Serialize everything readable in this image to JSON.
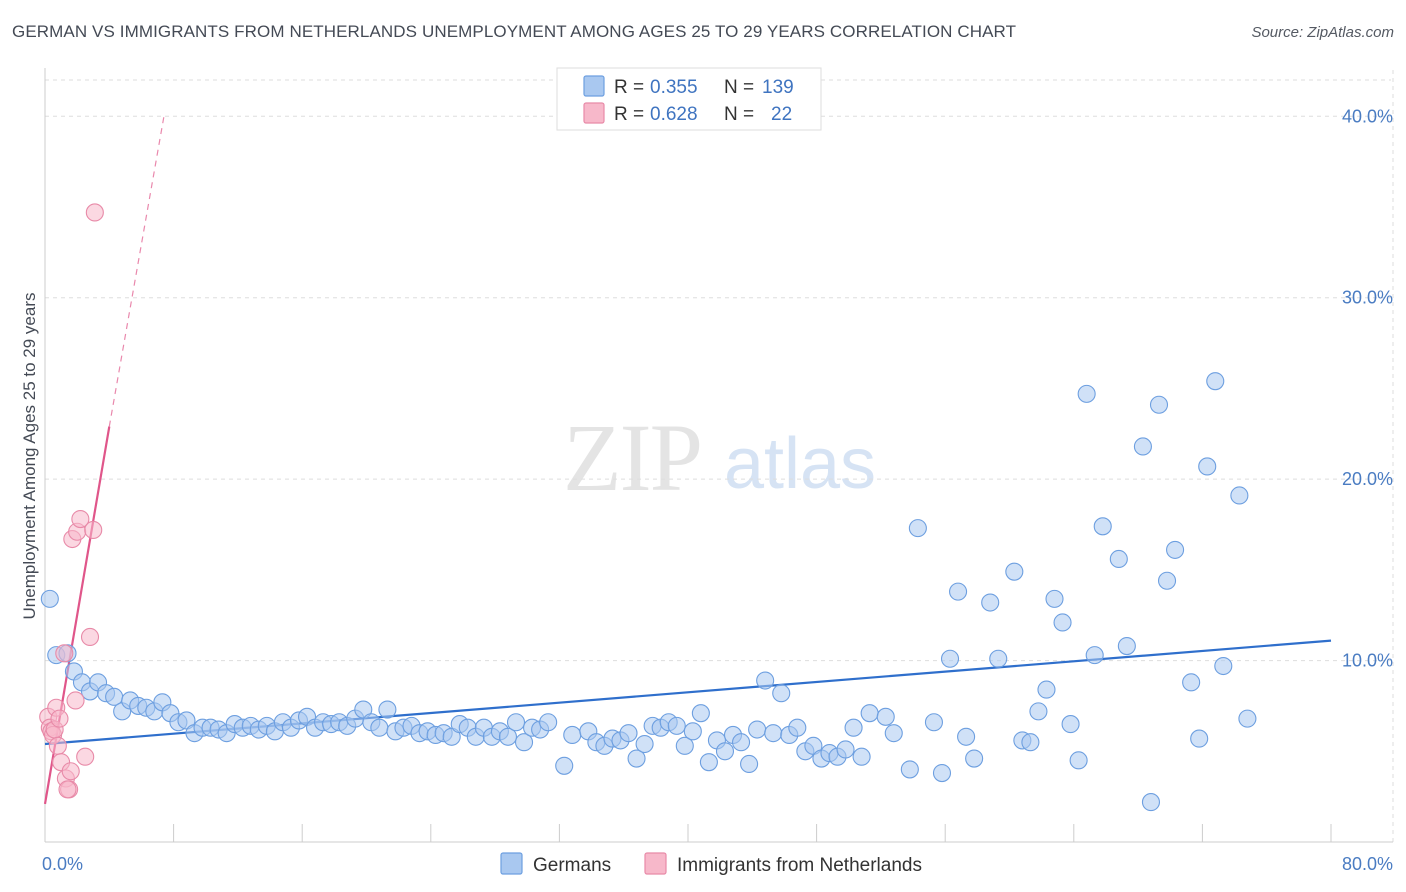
{
  "title": "GERMAN VS IMMIGRANTS FROM NETHERLANDS UNEMPLOYMENT AMONG AGES 25 TO 29 YEARS CORRELATION CHART",
  "source": "Source: ZipAtlas.com",
  "watermark": {
    "zip": "ZIP",
    "atlas": "atlas"
  },
  "legend_top": [
    {
      "r_label": "R = ",
      "r_value": "0.355",
      "n_label": "N = ",
      "n_value": "139"
    },
    {
      "r_label": "R = ",
      "r_value": "0.628",
      "n_label": "N = ",
      "n_value": "22"
    }
  ],
  "colors": {
    "germans_fill": "#a9c8f0",
    "germans_stroke": "#6d9fe0",
    "germans_line": "#2f6fcc",
    "neth_fill": "#f7b8ca",
    "neth_stroke": "#e88aa8",
    "neth_line": "#e0568a",
    "grid": "#dddddd",
    "axis": "#cccccc"
  },
  "chart_data": {
    "type": "scatter",
    "title": "GERMAN VS IMMIGRANTS FROM NETHERLANDS UNEMPLOYMENT AMONG AGES 25 TO 29 YEARS CORRELATION CHART",
    "xlabel": "",
    "ylabel": "Unemployment Among Ages 25 to 29 years",
    "xlim": [
      0,
      80
    ],
    "ylim": [
      0,
      42
    ],
    "x_tick_labels": [
      "0.0%",
      "80.0%"
    ],
    "y_ticks": [
      10,
      20,
      30,
      40
    ],
    "y_tick_labels": [
      "10.0%",
      "20.0%",
      "30.0%",
      "40.0%"
    ],
    "grid": true,
    "legend_position": "top-center",
    "series": [
      {
        "name": "Germans",
        "r": 0.355,
        "n": 139,
        "trend": {
          "x": [
            0,
            80
          ],
          "y": [
            5.4,
            11.1
          ],
          "style": "solid"
        },
        "points": [
          [
            0.3,
            13.4
          ],
          [
            0.7,
            10.3
          ],
          [
            1.4,
            10.4
          ],
          [
            1.8,
            9.4
          ],
          [
            2.3,
            8.8
          ],
          [
            2.8,
            8.3
          ],
          [
            3.3,
            8.8
          ],
          [
            3.8,
            8.2
          ],
          [
            4.3,
            8.0
          ],
          [
            4.8,
            7.2
          ],
          [
            5.3,
            7.8
          ],
          [
            5.8,
            7.5
          ],
          [
            6.3,
            7.4
          ],
          [
            6.8,
            7.2
          ],
          [
            7.3,
            7.7
          ],
          [
            7.8,
            7.1
          ],
          [
            8.3,
            6.6
          ],
          [
            8.8,
            6.7
          ],
          [
            9.3,
            6.0
          ],
          [
            9.8,
            6.3
          ],
          [
            10.3,
            6.3
          ],
          [
            10.8,
            6.2
          ],
          [
            11.3,
            6.0
          ],
          [
            11.8,
            6.5
          ],
          [
            12.3,
            6.3
          ],
          [
            12.8,
            6.4
          ],
          [
            13.3,
            6.2
          ],
          [
            13.8,
            6.4
          ],
          [
            14.3,
            6.1
          ],
          [
            14.8,
            6.6
          ],
          [
            15.3,
            6.3
          ],
          [
            15.8,
            6.7
          ],
          [
            16.3,
            6.9
          ],
          [
            16.8,
            6.3
          ],
          [
            17.3,
            6.6
          ],
          [
            17.8,
            6.5
          ],
          [
            18.3,
            6.6
          ],
          [
            18.8,
            6.4
          ],
          [
            19.3,
            6.8
          ],
          [
            19.8,
            7.3
          ],
          [
            20.3,
            6.6
          ],
          [
            20.8,
            6.3
          ],
          [
            21.3,
            7.3
          ],
          [
            21.8,
            6.1
          ],
          [
            22.3,
            6.3
          ],
          [
            22.8,
            6.4
          ],
          [
            23.3,
            6.0
          ],
          [
            23.8,
            6.1
          ],
          [
            24.3,
            5.9
          ],
          [
            24.8,
            6.0
          ],
          [
            25.3,
            5.8
          ],
          [
            25.8,
            6.5
          ],
          [
            26.3,
            6.3
          ],
          [
            26.8,
            5.8
          ],
          [
            27.3,
            6.3
          ],
          [
            27.8,
            5.8
          ],
          [
            28.3,
            6.1
          ],
          [
            28.8,
            5.8
          ],
          [
            29.3,
            6.6
          ],
          [
            29.8,
            5.5
          ],
          [
            30.3,
            6.3
          ],
          [
            30.8,
            6.2
          ],
          [
            31.3,
            6.6
          ],
          [
            32.3,
            4.2
          ],
          [
            32.8,
            5.9
          ],
          [
            33.8,
            6.1
          ],
          [
            34.3,
            5.5
          ],
          [
            34.8,
            5.3
          ],
          [
            35.3,
            5.7
          ],
          [
            35.8,
            5.6
          ],
          [
            36.3,
            6.0
          ],
          [
            36.8,
            4.6
          ],
          [
            37.3,
            5.4
          ],
          [
            37.8,
            6.4
          ],
          [
            38.3,
            6.3
          ],
          [
            38.8,
            6.6
          ],
          [
            39.3,
            6.4
          ],
          [
            39.8,
            5.3
          ],
          [
            40.3,
            6.1
          ],
          [
            40.8,
            7.1
          ],
          [
            41.3,
            4.4
          ],
          [
            41.8,
            5.6
          ],
          [
            42.3,
            5.0
          ],
          [
            42.8,
            5.9
          ],
          [
            43.3,
            5.5
          ],
          [
            43.8,
            4.3
          ],
          [
            44.3,
            6.2
          ],
          [
            44.8,
            8.9
          ],
          [
            45.3,
            6.0
          ],
          [
            45.8,
            8.2
          ],
          [
            46.3,
            5.9
          ],
          [
            46.8,
            6.3
          ],
          [
            47.3,
            5.0
          ],
          [
            47.8,
            5.3
          ],
          [
            48.3,
            4.6
          ],
          [
            48.8,
            4.9
          ],
          [
            49.3,
            4.7
          ],
          [
            49.8,
            5.1
          ],
          [
            50.3,
            6.3
          ],
          [
            50.8,
            4.7
          ],
          [
            51.3,
            7.1
          ],
          [
            52.3,
            6.9
          ],
          [
            52.8,
            6.0
          ],
          [
            53.8,
            4.0
          ],
          [
            54.3,
            17.3
          ],
          [
            55.3,
            6.6
          ],
          [
            55.8,
            3.8
          ],
          [
            56.3,
            10.1
          ],
          [
            56.8,
            13.8
          ],
          [
            57.3,
            5.8
          ],
          [
            57.8,
            4.6
          ],
          [
            58.8,
            13.2
          ],
          [
            59.3,
            10.1
          ],
          [
            60.3,
            14.9
          ],
          [
            60.8,
            5.6
          ],
          [
            61.3,
            5.5
          ],
          [
            61.8,
            7.2
          ],
          [
            62.3,
            8.4
          ],
          [
            62.8,
            13.4
          ],
          [
            63.3,
            12.1
          ],
          [
            63.8,
            6.5
          ],
          [
            64.3,
            4.5
          ],
          [
            64.8,
            24.7
          ],
          [
            65.3,
            10.3
          ],
          [
            65.8,
            17.4
          ],
          [
            66.8,
            15.6
          ],
          [
            67.3,
            10.8
          ],
          [
            68.3,
            21.8
          ],
          [
            68.8,
            2.2
          ],
          [
            69.3,
            24.1
          ],
          [
            69.8,
            14.4
          ],
          [
            70.3,
            16.1
          ],
          [
            71.3,
            8.8
          ],
          [
            71.8,
            5.7
          ],
          [
            72.3,
            20.7
          ],
          [
            72.8,
            25.4
          ],
          [
            73.3,
            9.7
          ],
          [
            74.3,
            19.1
          ],
          [
            74.8,
            6.8
          ]
        ]
      },
      {
        "name": "Immigrants from Netherlands",
        "r": 0.628,
        "n": 22,
        "trend": {
          "x": [
            0,
            4.0,
            7.4
          ],
          "y": [
            2.1,
            22.9,
            40.0
          ],
          "style": "solid-then-dashed"
        },
        "points": [
          [
            0.2,
            6.9
          ],
          [
            0.3,
            6.3
          ],
          [
            0.4,
            6.1
          ],
          [
            0.5,
            5.9
          ],
          [
            0.6,
            6.2
          ],
          [
            0.7,
            7.4
          ],
          [
            0.8,
            5.3
          ],
          [
            0.9,
            6.8
          ],
          [
            1.0,
            4.4
          ],
          [
            1.2,
            10.4
          ],
          [
            1.3,
            3.5
          ],
          [
            1.5,
            2.9
          ],
          [
            1.6,
            3.9
          ],
          [
            1.7,
            16.7
          ],
          [
            1.9,
            7.8
          ],
          [
            2.0,
            17.1
          ],
          [
            2.2,
            17.8
          ],
          [
            2.5,
            4.7
          ],
          [
            2.8,
            11.3
          ],
          [
            3.0,
            17.2
          ],
          [
            3.1,
            34.7
          ],
          [
            1.4,
            2.9
          ]
        ]
      }
    ]
  },
  "legend_bottom": [
    {
      "label": "Germans"
    },
    {
      "label": "Immigrants from Netherlands"
    }
  ]
}
